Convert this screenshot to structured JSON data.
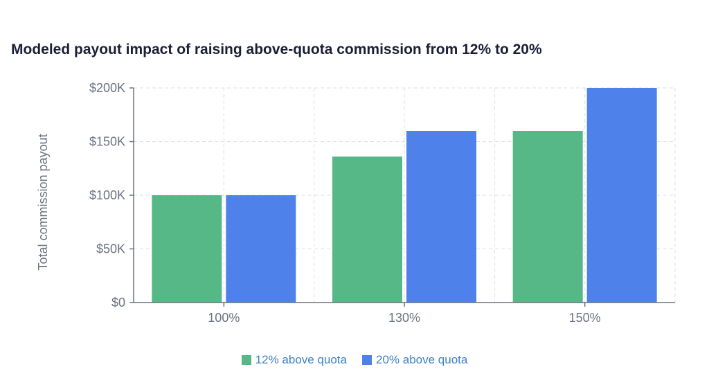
{
  "chart_data": {
    "type": "bar",
    "title": "Modeled payout impact of raising above-quota commission from 12% to 20%",
    "xlabel": "",
    "ylabel": "Total commission payout",
    "categories": [
      "100%",
      "130%",
      "150%"
    ],
    "series": [
      {
        "name": "12% above quota",
        "values": [
          100000,
          136000,
          160000
        ],
        "color": "#55b886"
      },
      {
        "name": "20% above quota",
        "values": [
          100000,
          160000,
          200000
        ],
        "color": "#4f81ea"
      }
    ],
    "ylim": [
      0,
      200000
    ],
    "yticks": [
      0,
      50000,
      100000,
      150000,
      200000
    ],
    "ytick_labels": [
      "$0",
      "$50K",
      "$100K",
      "$150K",
      "$200K"
    ],
    "grid": true,
    "legend_position": "bottom"
  }
}
